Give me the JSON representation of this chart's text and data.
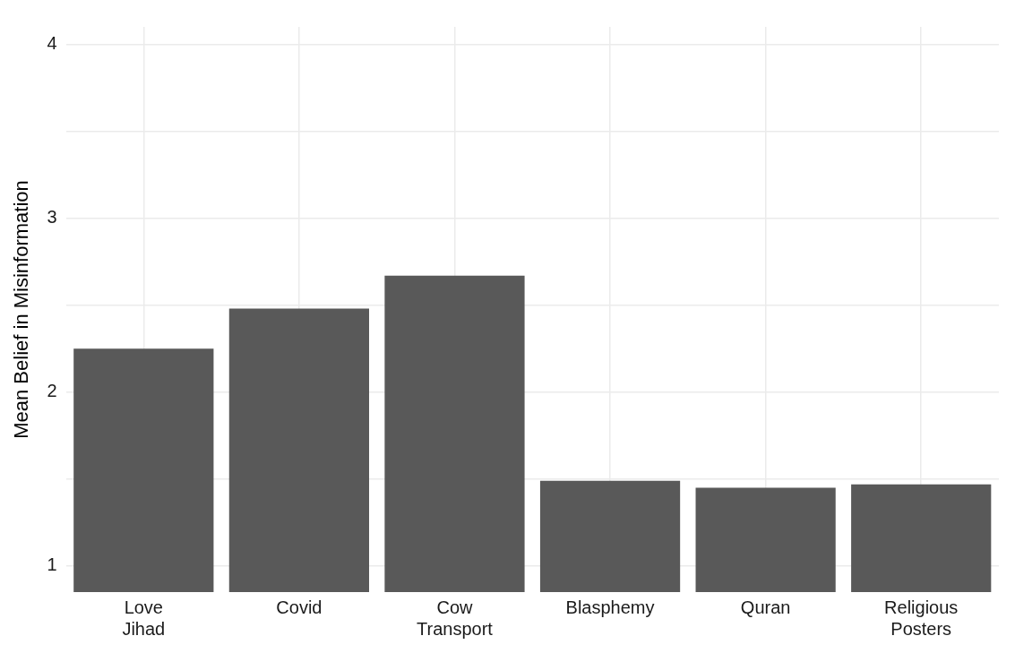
{
  "chart_data": {
    "type": "bar",
    "ylabel": "Mean Belief in Misinformation",
    "categories": [
      "Love Jihad",
      "Covid",
      "Cow Transport",
      "Blasphemy",
      "Quran",
      "Religious Posters"
    ],
    "values": [
      2.25,
      2.48,
      2.67,
      1.49,
      1.45,
      1.47
    ],
    "color": "#595959",
    "ylim": [
      0.85,
      4.1
    ],
    "yticks": [
      1,
      {
        "value": 1.5,
        "label": null
      },
      2,
      {
        "value": 2.5,
        "label": null
      },
      3,
      {
        "value": 3.5,
        "label": null
      },
      4
    ],
    "grid": true
  }
}
